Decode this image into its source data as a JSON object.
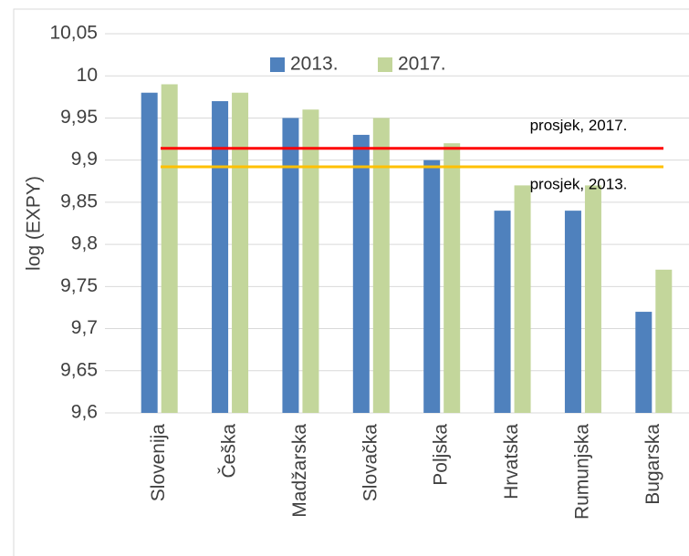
{
  "chart_data": {
    "type": "bar",
    "y_label": "log (EXPY)",
    "categories": [
      "Slovenija",
      "Češka",
      "Madžarska",
      "Slovačka",
      "Poljska",
      "Hrvatska",
      "Rumunjska",
      "Bugarska"
    ],
    "series": [
      {
        "name": "2013.",
        "color": "#4f81bd",
        "values": [
          9.98,
          9.97,
          9.95,
          9.93,
          9.9,
          9.84,
          9.84,
          9.72
        ]
      },
      {
        "name": "2017.",
        "color": "#c3d69b",
        "values": [
          9.99,
          9.98,
          9.96,
          9.95,
          9.92,
          9.87,
          9.87,
          9.77
        ]
      }
    ],
    "annotations": [
      {
        "label": "prosjek, 2017.",
        "value": 9.914,
        "color": "#ff0000"
      },
      {
        "label": "prosjek, 2013.",
        "value": 9.892,
        "color": "#ffc000"
      }
    ],
    "ylim": [
      9.6,
      10.05
    ],
    "yticks": [
      {
        "value": 9.6,
        "label": "9,6"
      },
      {
        "value": 9.65,
        "label": "9,65"
      },
      {
        "value": 9.7,
        "label": "9,7"
      },
      {
        "value": 9.75,
        "label": "9,75"
      },
      {
        "value": 9.8,
        "label": "9,8"
      },
      {
        "value": 9.85,
        "label": "9,85"
      },
      {
        "value": 9.9,
        "label": "9,9"
      },
      {
        "value": 9.95,
        "label": "9,95"
      },
      {
        "value": 10,
        "label": "10"
      },
      {
        "value": 10.05,
        "label": "10,05"
      }
    ],
    "grid": true,
    "legend": "top"
  }
}
